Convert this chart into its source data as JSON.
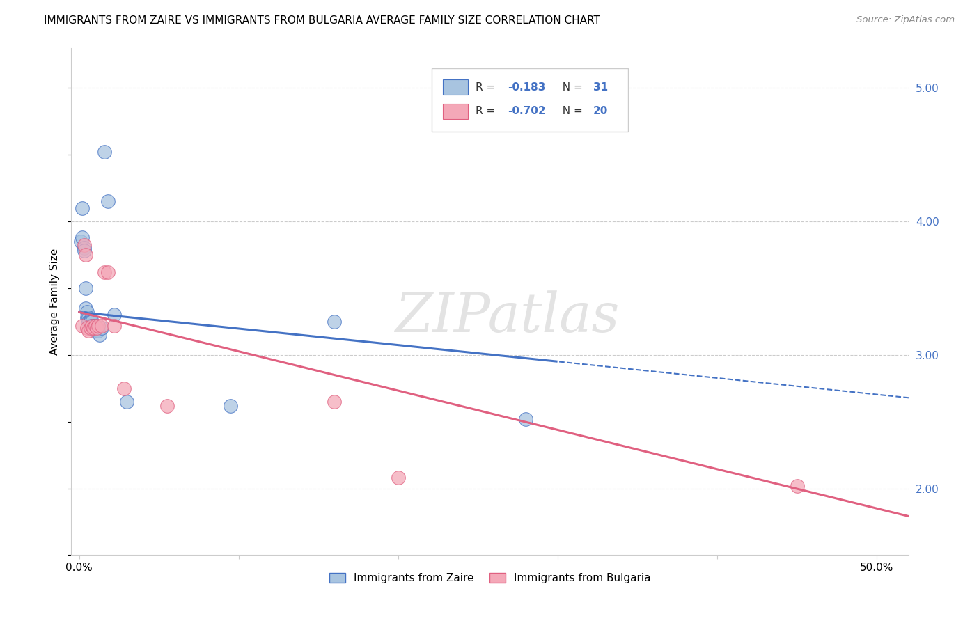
{
  "title": "IMMIGRANTS FROM ZAIRE VS IMMIGRANTS FROM BULGARIA AVERAGE FAMILY SIZE CORRELATION CHART",
  "source": "Source: ZipAtlas.com",
  "ylabel": "Average Family Size",
  "xlim": [
    -0.005,
    0.52
  ],
  "ylim": [
    1.5,
    5.3
  ],
  "zaire_color": "#a8c4e0",
  "bulgaria_color": "#f4a8b8",
  "zaire_R": -0.183,
  "zaire_N": 31,
  "bulgaria_R": -0.702,
  "bulgaria_N": 20,
  "background_color": "#ffffff",
  "grid_color": "#cccccc",
  "watermark": "ZIPatlas",
  "zaire_x": [
    0.001,
    0.002,
    0.002,
    0.003,
    0.003,
    0.004,
    0.004,
    0.005,
    0.005,
    0.006,
    0.006,
    0.007,
    0.007,
    0.007,
    0.008,
    0.008,
    0.009,
    0.009,
    0.01,
    0.01,
    0.011,
    0.012,
    0.013,
    0.014,
    0.016,
    0.018,
    0.022,
    0.03,
    0.095,
    0.16,
    0.28
  ],
  "zaire_y": [
    3.85,
    4.1,
    3.88,
    3.8,
    3.78,
    3.5,
    3.35,
    3.32,
    3.28,
    3.28,
    3.25,
    3.26,
    3.25,
    3.22,
    3.25,
    3.22,
    3.22,
    3.2,
    3.22,
    3.18,
    3.2,
    3.18,
    3.15,
    3.2,
    4.52,
    4.15,
    3.3,
    2.65,
    2.62,
    3.25,
    2.52
  ],
  "bulgaria_x": [
    0.002,
    0.003,
    0.004,
    0.005,
    0.006,
    0.007,
    0.008,
    0.009,
    0.01,
    0.011,
    0.012,
    0.014,
    0.016,
    0.018,
    0.022,
    0.028,
    0.055,
    0.16,
    0.2,
    0.45
  ],
  "bulgaria_y": [
    3.22,
    3.82,
    3.75,
    3.2,
    3.18,
    3.2,
    3.22,
    3.2,
    3.22,
    3.2,
    3.22,
    3.22,
    3.62,
    3.62,
    3.22,
    2.75,
    2.62,
    2.65,
    2.08,
    2.02
  ],
  "line_blue_color": "#4472c4",
  "line_pink_color": "#e06080",
  "title_fontsize": 11,
  "legend_R_color": "#4472c4",
  "legend_R2_color": "#4472c4",
  "y_ticks_right": [
    2.0,
    3.0,
    4.0,
    5.0
  ]
}
